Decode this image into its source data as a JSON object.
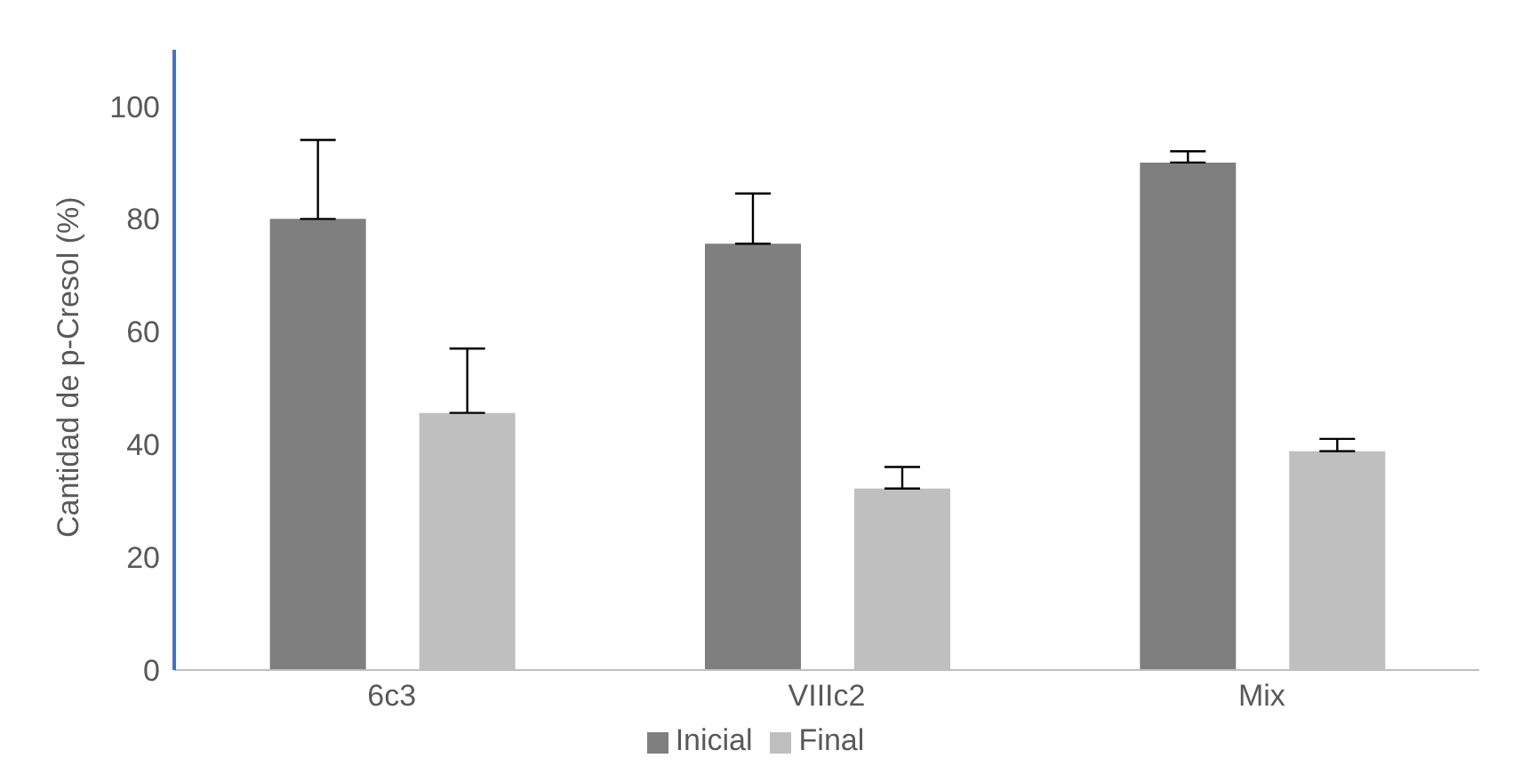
{
  "chart_data": {
    "type": "bar",
    "ylabel": "Cantidad de p-Cresol (%)",
    "categories": [
      "6c3",
      "VIIIc2",
      "Mix"
    ],
    "series": [
      {
        "name": "Inicial",
        "color": "#7f7f7f",
        "values": [
          80,
          75.6,
          90
        ],
        "errors": [
          [
            80,
            94
          ],
          [
            75.6,
            84.5
          ],
          [
            90,
            92
          ]
        ]
      },
      {
        "name": "Final",
        "color": "#bfbfbf",
        "values": [
          45.6,
          32.2,
          38.8
        ],
        "errors": [
          [
            45.6,
            57
          ],
          [
            32.2,
            36
          ],
          [
            38.8,
            41
          ]
        ]
      }
    ],
    "ylim": [
      0,
      110
    ],
    "yticks": [
      0,
      20,
      40,
      60,
      80,
      100
    ],
    "grid": false,
    "legend": "bottom"
  }
}
